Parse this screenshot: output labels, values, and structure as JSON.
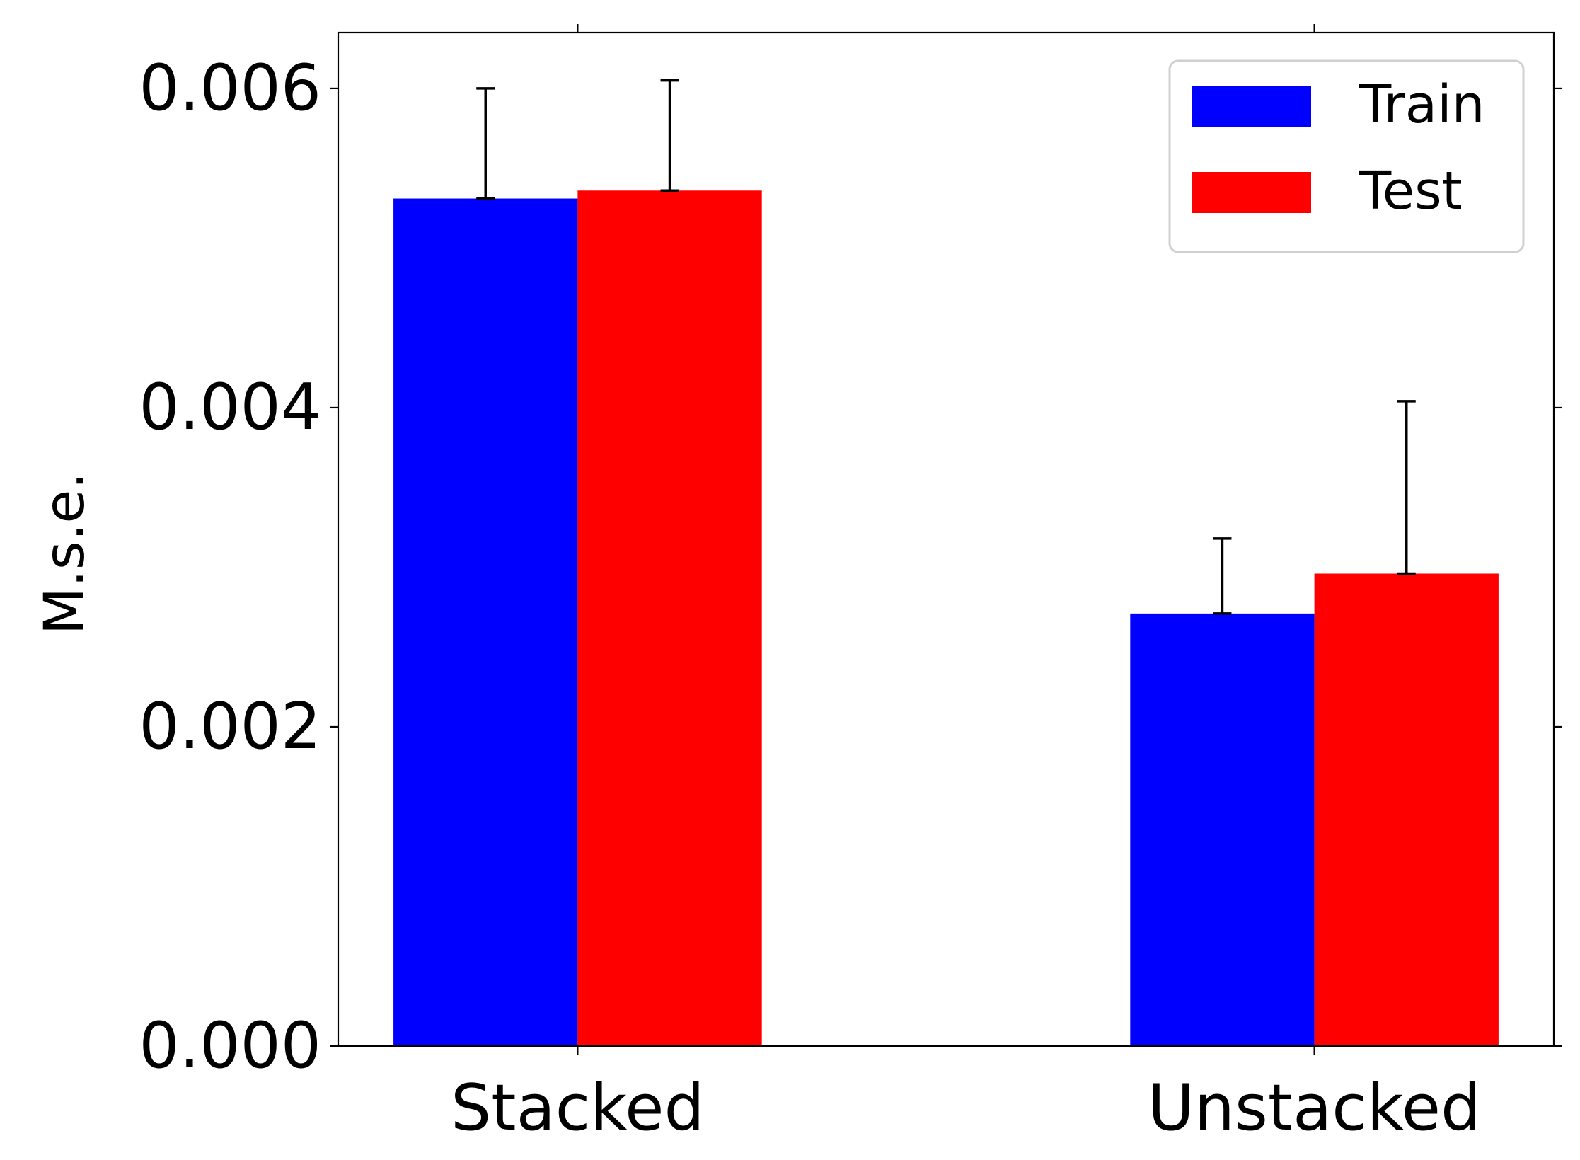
{
  "chart_data": {
    "type": "bar",
    "categories": [
      "Stacked",
      "Unstacked"
    ],
    "series": [
      {
        "name": "Train",
        "color": "#0000ff",
        "values": [
          0.00531,
          0.00271
        ],
        "err_upper": [
          0.006,
          0.00318
        ]
      },
      {
        "name": "Test",
        "color": "#ff0000",
        "values": [
          0.00536,
          0.00296
        ],
        "err_upper": [
          0.00605,
          0.00404
        ]
      }
    ],
    "title": "",
    "xlabel": "",
    "ylabel": "M.s.e.",
    "ylim": [
      0,
      0.00635
    ],
    "yticks": [
      0.0,
      0.002,
      0.004,
      0.006
    ],
    "ytick_labels": [
      "0.000",
      "0.002",
      "0.004",
      "0.006"
    ],
    "legend_position": "top-right",
    "grid": false
  }
}
